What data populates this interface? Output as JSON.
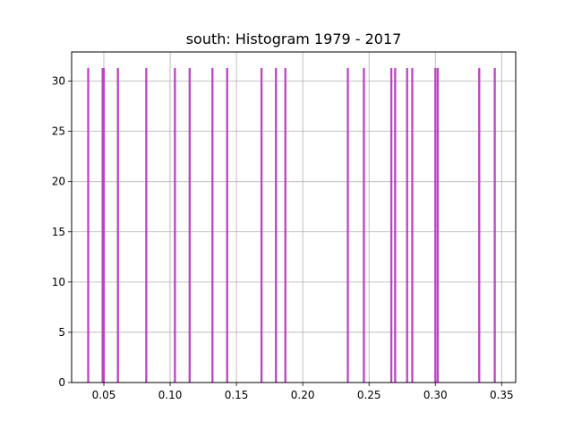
{
  "chart_data": {
    "type": "bar",
    "title": "south: Histogram 1979 - 2017",
    "xlabel": "",
    "ylabel": "",
    "xlim": [
      0.0257,
      0.3606
    ],
    "ylim": [
      0,
      32.9
    ],
    "grid": true,
    "colors": {
      "bar": "#c040c8",
      "grid": "#b0b0b0",
      "axis": "#000000"
    },
    "bin_width": 0.00155,
    "bars": [
      {
        "x": 0.0382,
        "count": 31.3
      },
      {
        "x": 0.0491,
        "count": 31.3
      },
      {
        "x": 0.0499,
        "count": 31.3
      },
      {
        "x": 0.0606,
        "count": 31.3
      },
      {
        "x": 0.082,
        "count": 31.3
      },
      {
        "x": 0.1036,
        "count": 31.3
      },
      {
        "x": 0.1147,
        "count": 31.3
      },
      {
        "x": 0.1319,
        "count": 31.3
      },
      {
        "x": 0.143,
        "count": 31.3
      },
      {
        "x": 0.1689,
        "count": 31.3
      },
      {
        "x": 0.1798,
        "count": 31.3
      },
      {
        "x": 0.1869,
        "count": 31.3
      },
      {
        "x": 0.234,
        "count": 31.3
      },
      {
        "x": 0.2461,
        "count": 31.3
      },
      {
        "x": 0.2668,
        "count": 31.3
      },
      {
        "x": 0.2697,
        "count": 31.3
      },
      {
        "x": 0.2787,
        "count": 31.3
      },
      {
        "x": 0.2826,
        "count": 31.3
      },
      {
        "x": 0.3,
        "count": 31.3
      },
      {
        "x": 0.3018,
        "count": 31.3
      },
      {
        "x": 0.3331,
        "count": 31.3
      },
      {
        "x": 0.3448,
        "count": 31.3
      }
    ],
    "x_ticks": [
      {
        "value": 0.05,
        "label": "0.05"
      },
      {
        "value": 0.1,
        "label": "0.10"
      },
      {
        "value": 0.15,
        "label": "0.15"
      },
      {
        "value": 0.2,
        "label": "0.20"
      },
      {
        "value": 0.25,
        "label": "0.25"
      },
      {
        "value": 0.3,
        "label": "0.30"
      },
      {
        "value": 0.35,
        "label": "0.35"
      }
    ],
    "y_ticks": [
      {
        "value": 0,
        "label": "0"
      },
      {
        "value": 5,
        "label": "5"
      },
      {
        "value": 10,
        "label": "10"
      },
      {
        "value": 15,
        "label": "15"
      },
      {
        "value": 20,
        "label": "20"
      },
      {
        "value": 25,
        "label": "25"
      },
      {
        "value": 30,
        "label": "30"
      }
    ]
  }
}
